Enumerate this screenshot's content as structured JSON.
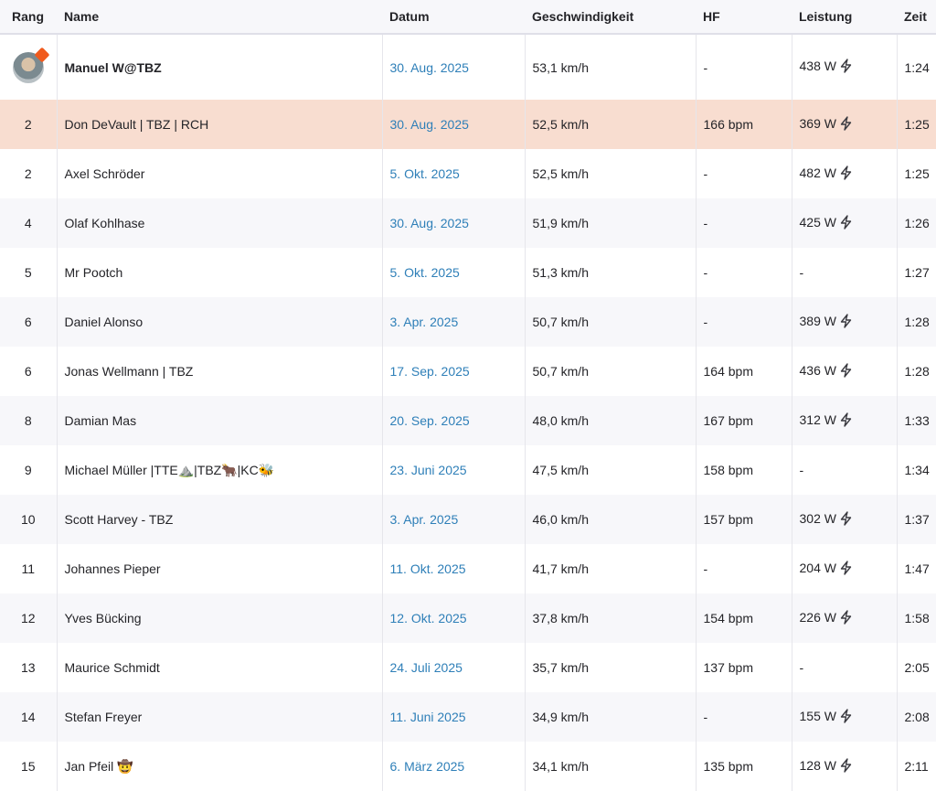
{
  "headers": {
    "rank": "Rang",
    "name": "Name",
    "date": "Datum",
    "speed": "Geschwindigkeit",
    "hf": "HF",
    "power": "Leistung",
    "time": "Zeit"
  },
  "rows": [
    {
      "rank": "",
      "name": "Manuel W@TBZ",
      "date": "30. Aug. 2025",
      "speed": "53,1 km/h",
      "hf": "-",
      "power": "438 W",
      "time": "1:24"
    },
    {
      "rank": "2",
      "name": "Don DeVault | TBZ | RCH",
      "date": "30. Aug. 2025",
      "speed": "52,5 km/h",
      "hf": "166 bpm",
      "power": "369 W",
      "time": "1:25"
    },
    {
      "rank": "2",
      "name": "Axel Schröder",
      "date": "5. Okt. 2025",
      "speed": "52,5 km/h",
      "hf": "-",
      "power": "482 W",
      "time": "1:25"
    },
    {
      "rank": "4",
      "name": "Olaf Kohlhase",
      "date": "30. Aug. 2025",
      "speed": "51,9 km/h",
      "hf": "-",
      "power": "425 W",
      "time": "1:26"
    },
    {
      "rank": "5",
      "name": "Mr Pootch",
      "date": "5. Okt. 2025",
      "speed": "51,3 km/h",
      "hf": "-",
      "power": "-",
      "time": "1:27"
    },
    {
      "rank": "6",
      "name": "Daniel Alonso",
      "date": "3. Apr. 2025",
      "speed": "50,7 km/h",
      "hf": "-",
      "power": "389 W",
      "time": "1:28"
    },
    {
      "rank": "6",
      "name": "Jonas Wellmann | TBZ",
      "date": "17. Sep. 2025",
      "speed": "50,7 km/h",
      "hf": "164 bpm",
      "power": "436 W",
      "time": "1:28"
    },
    {
      "rank": "8",
      "name": "Damian Mas",
      "date": "20. Sep. 2025",
      "speed": "48,0 km/h",
      "hf": "167 bpm",
      "power": "312 W",
      "time": "1:33"
    },
    {
      "rank": "9",
      "name": "Michael Müller |TTE⛰️|TBZ🐂|KC🐝",
      "date": "23. Juni 2025",
      "speed": "47,5 km/h",
      "hf": "158 bpm",
      "power": "-",
      "time": "1:34"
    },
    {
      "rank": "10",
      "name": "Scott Harvey - TBZ",
      "date": "3. Apr. 2025",
      "speed": "46,0 km/h",
      "hf": "157 bpm",
      "power": "302 W",
      "time": "1:37"
    },
    {
      "rank": "11",
      "name": "Johannes Pieper",
      "date": "11. Okt. 2025",
      "speed": "41,7 km/h",
      "hf": "-",
      "power": "204 W",
      "time": "1:47"
    },
    {
      "rank": "12",
      "name": "Yves Bücking",
      "date": "12. Okt. 2025",
      "speed": "37,8 km/h",
      "hf": "154 bpm",
      "power": "226 W",
      "time": "1:58"
    },
    {
      "rank": "13",
      "name": "Maurice Schmidt",
      "date": "24. Juli 2025",
      "speed": "35,7 km/h",
      "hf": "137 bpm",
      "power": "-",
      "time": "2:05"
    },
    {
      "rank": "14",
      "name": "Stefan Freyer",
      "date": "11. Juni 2025",
      "speed": "34,9 km/h",
      "hf": "-",
      "power": "155 W",
      "time": "2:08"
    },
    {
      "rank": "15",
      "name": "Jan Pfeil 🤠",
      "date": "6. März 2025",
      "speed": "34,1 km/h",
      "hf": "135 bpm",
      "power": "128 W",
      "time": "2:11"
    }
  ],
  "colors": {
    "accent_link": "#2e7fb8",
    "highlight_row": "#f8ddd0",
    "avatar_badge": "#f05a1d"
  },
  "icons": {
    "power": "lightning-bolt-icon",
    "first_place": "avatar"
  }
}
